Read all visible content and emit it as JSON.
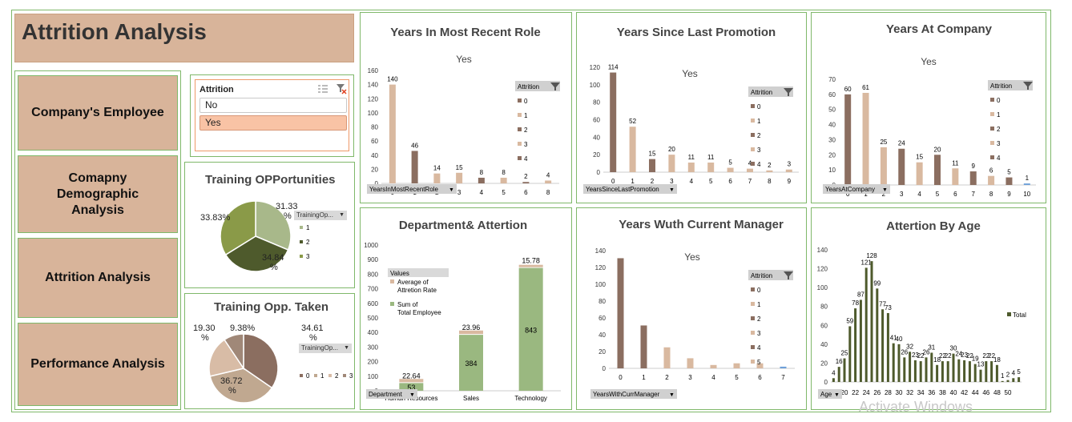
{
  "title": "Attrition Analysis",
  "nav": [
    "Company's Employee",
    "Comapny Demographic Analysis",
    "Attrition Analysis",
    "Performance Analysis"
  ],
  "slicer": {
    "header": "Attrition",
    "options": [
      "No",
      "Yes"
    ],
    "selected": "Yes"
  },
  "training_opp": {
    "title": "Training OPPortunities",
    "field": "TrainingOp...",
    "legend": [
      "1",
      "2",
      "3"
    ],
    "labels": [
      "31.33 %",
      "34.84 %",
      "33.83%"
    ],
    "values": [
      31.33,
      34.84,
      33.83
    ]
  },
  "training_taken": {
    "title": "Training Opp. Taken",
    "field": "TrainingOp...",
    "legend": [
      "0",
      "1",
      "2",
      "3"
    ],
    "labels": [
      "34.61 %",
      "36.72 %",
      "19.30 %",
      "9.38%"
    ],
    "values": [
      34.61,
      36.72,
      19.3,
      9.38
    ]
  },
  "colors": {
    "brown": "#8b6e60",
    "tan": "#d9b9a0",
    "olive": "#4e5a2c",
    "green": "#9ab880",
    "accent_orange": "#ee9a6a",
    "frame": "#7fb86a"
  },
  "chart_data": [
    {
      "type": "bar",
      "title": "Years In Most Recent Role",
      "subtitle": "Yes",
      "field": "YearsInMostRecentRole",
      "legend_title": "Attrition",
      "legend": [
        "0",
        "1",
        "2",
        "3",
        "4"
      ],
      "categories": [
        "0",
        "1",
        "2",
        "3",
        "4",
        "5",
        "6",
        "8"
      ],
      "values": [
        140,
        46,
        14,
        15,
        8,
        8,
        2,
        4
      ],
      "ylim": [
        0,
        160
      ],
      "yticks": [
        0,
        20,
        40,
        60,
        80,
        100,
        120,
        140,
        160
      ]
    },
    {
      "type": "bar",
      "title": "Years Since Last Promotion",
      "subtitle": "Yes",
      "field": "YearsSinceLastPromotion",
      "legend_title": "Attrition",
      "legend": [
        "0",
        "1",
        "2",
        "3",
        "4"
      ],
      "categories": [
        "0",
        "1",
        "2",
        "3",
        "4",
        "5",
        "6",
        "7",
        "8",
        "9"
      ],
      "values": [
        114,
        52,
        15,
        20,
        11,
        11,
        5,
        4,
        2,
        3
      ],
      "ylim": [
        0,
        120
      ],
      "yticks": [
        0,
        20,
        40,
        60,
        80,
        100,
        120
      ]
    },
    {
      "type": "bar",
      "title": "Years At Company",
      "subtitle": "Yes",
      "field": "YearsAtCompany",
      "legend_title": "Attrition",
      "legend": [
        "0",
        "1",
        "2",
        "3",
        "4"
      ],
      "categories": [
        "0",
        "1",
        "2",
        "3",
        "4",
        "5",
        "6",
        "7",
        "8",
        "9",
        "10"
      ],
      "values": [
        60,
        61,
        25,
        24,
        15,
        20,
        11,
        9,
        6,
        5,
        1
      ],
      "ylim": [
        0,
        70
      ],
      "yticks": [
        0,
        10,
        20,
        30,
        40,
        50,
        60,
        70
      ]
    },
    {
      "type": "bar",
      "title": "Department& Attertion",
      "field": "Department",
      "legend_title": "Values",
      "legend": [
        "Average of Attretion Rate",
        "Sum of Total Employee"
      ],
      "categories": [
        "Human Resources",
        "Sales",
        "Technology"
      ],
      "series": [
        {
          "name": "Sum of Total Employee",
          "values": [
            53,
            384,
            843
          ]
        },
        {
          "name": "Average of Attretion Rate",
          "values": [
            22.64,
            23.96,
            15.78
          ]
        }
      ],
      "ylim": [
        0,
        1000
      ],
      "yticks": [
        0,
        100,
        200,
        300,
        400,
        500,
        600,
        700,
        800,
        900,
        1000
      ]
    },
    {
      "type": "bar",
      "title": "Years Wuth Current Manager",
      "subtitle": "Yes",
      "field": "YearsWithCurrManager",
      "legend_title": "Attrition",
      "legend": [
        "0",
        "1",
        "2",
        "3",
        "4",
        "5"
      ],
      "categories": [
        "0",
        "1",
        "2",
        "3",
        "4",
        "5",
        "6",
        "7"
      ],
      "values": [
        131,
        51,
        25,
        12,
        4,
        6,
        6,
        2
      ],
      "ylim": [
        0,
        140
      ],
      "yticks": [
        0,
        20,
        40,
        60,
        80,
        100,
        120,
        140
      ]
    },
    {
      "type": "bar",
      "title": "Attertion By Age",
      "field": "Age",
      "legend": [
        "Total"
      ],
      "categories": [
        "18",
        "19",
        "20",
        "21",
        "22",
        "23",
        "24",
        "25",
        "26",
        "27",
        "28",
        "29",
        "30",
        "31",
        "32",
        "33",
        "34",
        "35",
        "36",
        "37",
        "38",
        "39",
        "40",
        "41",
        "42",
        "43",
        "44",
        "45",
        "46",
        "47",
        "48",
        "49",
        "50",
        "51",
        "52"
      ],
      "values": [
        4,
        16,
        25,
        59,
        78,
        87,
        121,
        128,
        99,
        77,
        73,
        41,
        40,
        26,
        32,
        23,
        22,
        26,
        31,
        18,
        22,
        22,
        30,
        24,
        23,
        22,
        19,
        13,
        22,
        22,
        18,
        1,
        2,
        4,
        5
      ],
      "xticks": [
        "20",
        "22",
        "24",
        "26",
        "28",
        "30",
        "32",
        "34",
        "36",
        "38",
        "40",
        "42",
        "44",
        "46",
        "48",
        "50"
      ],
      "ylim": [
        0,
        140
      ],
      "yticks": [
        0,
        20,
        40,
        60,
        80,
        100,
        120,
        140
      ]
    }
  ],
  "watermark": "Activate Windows"
}
